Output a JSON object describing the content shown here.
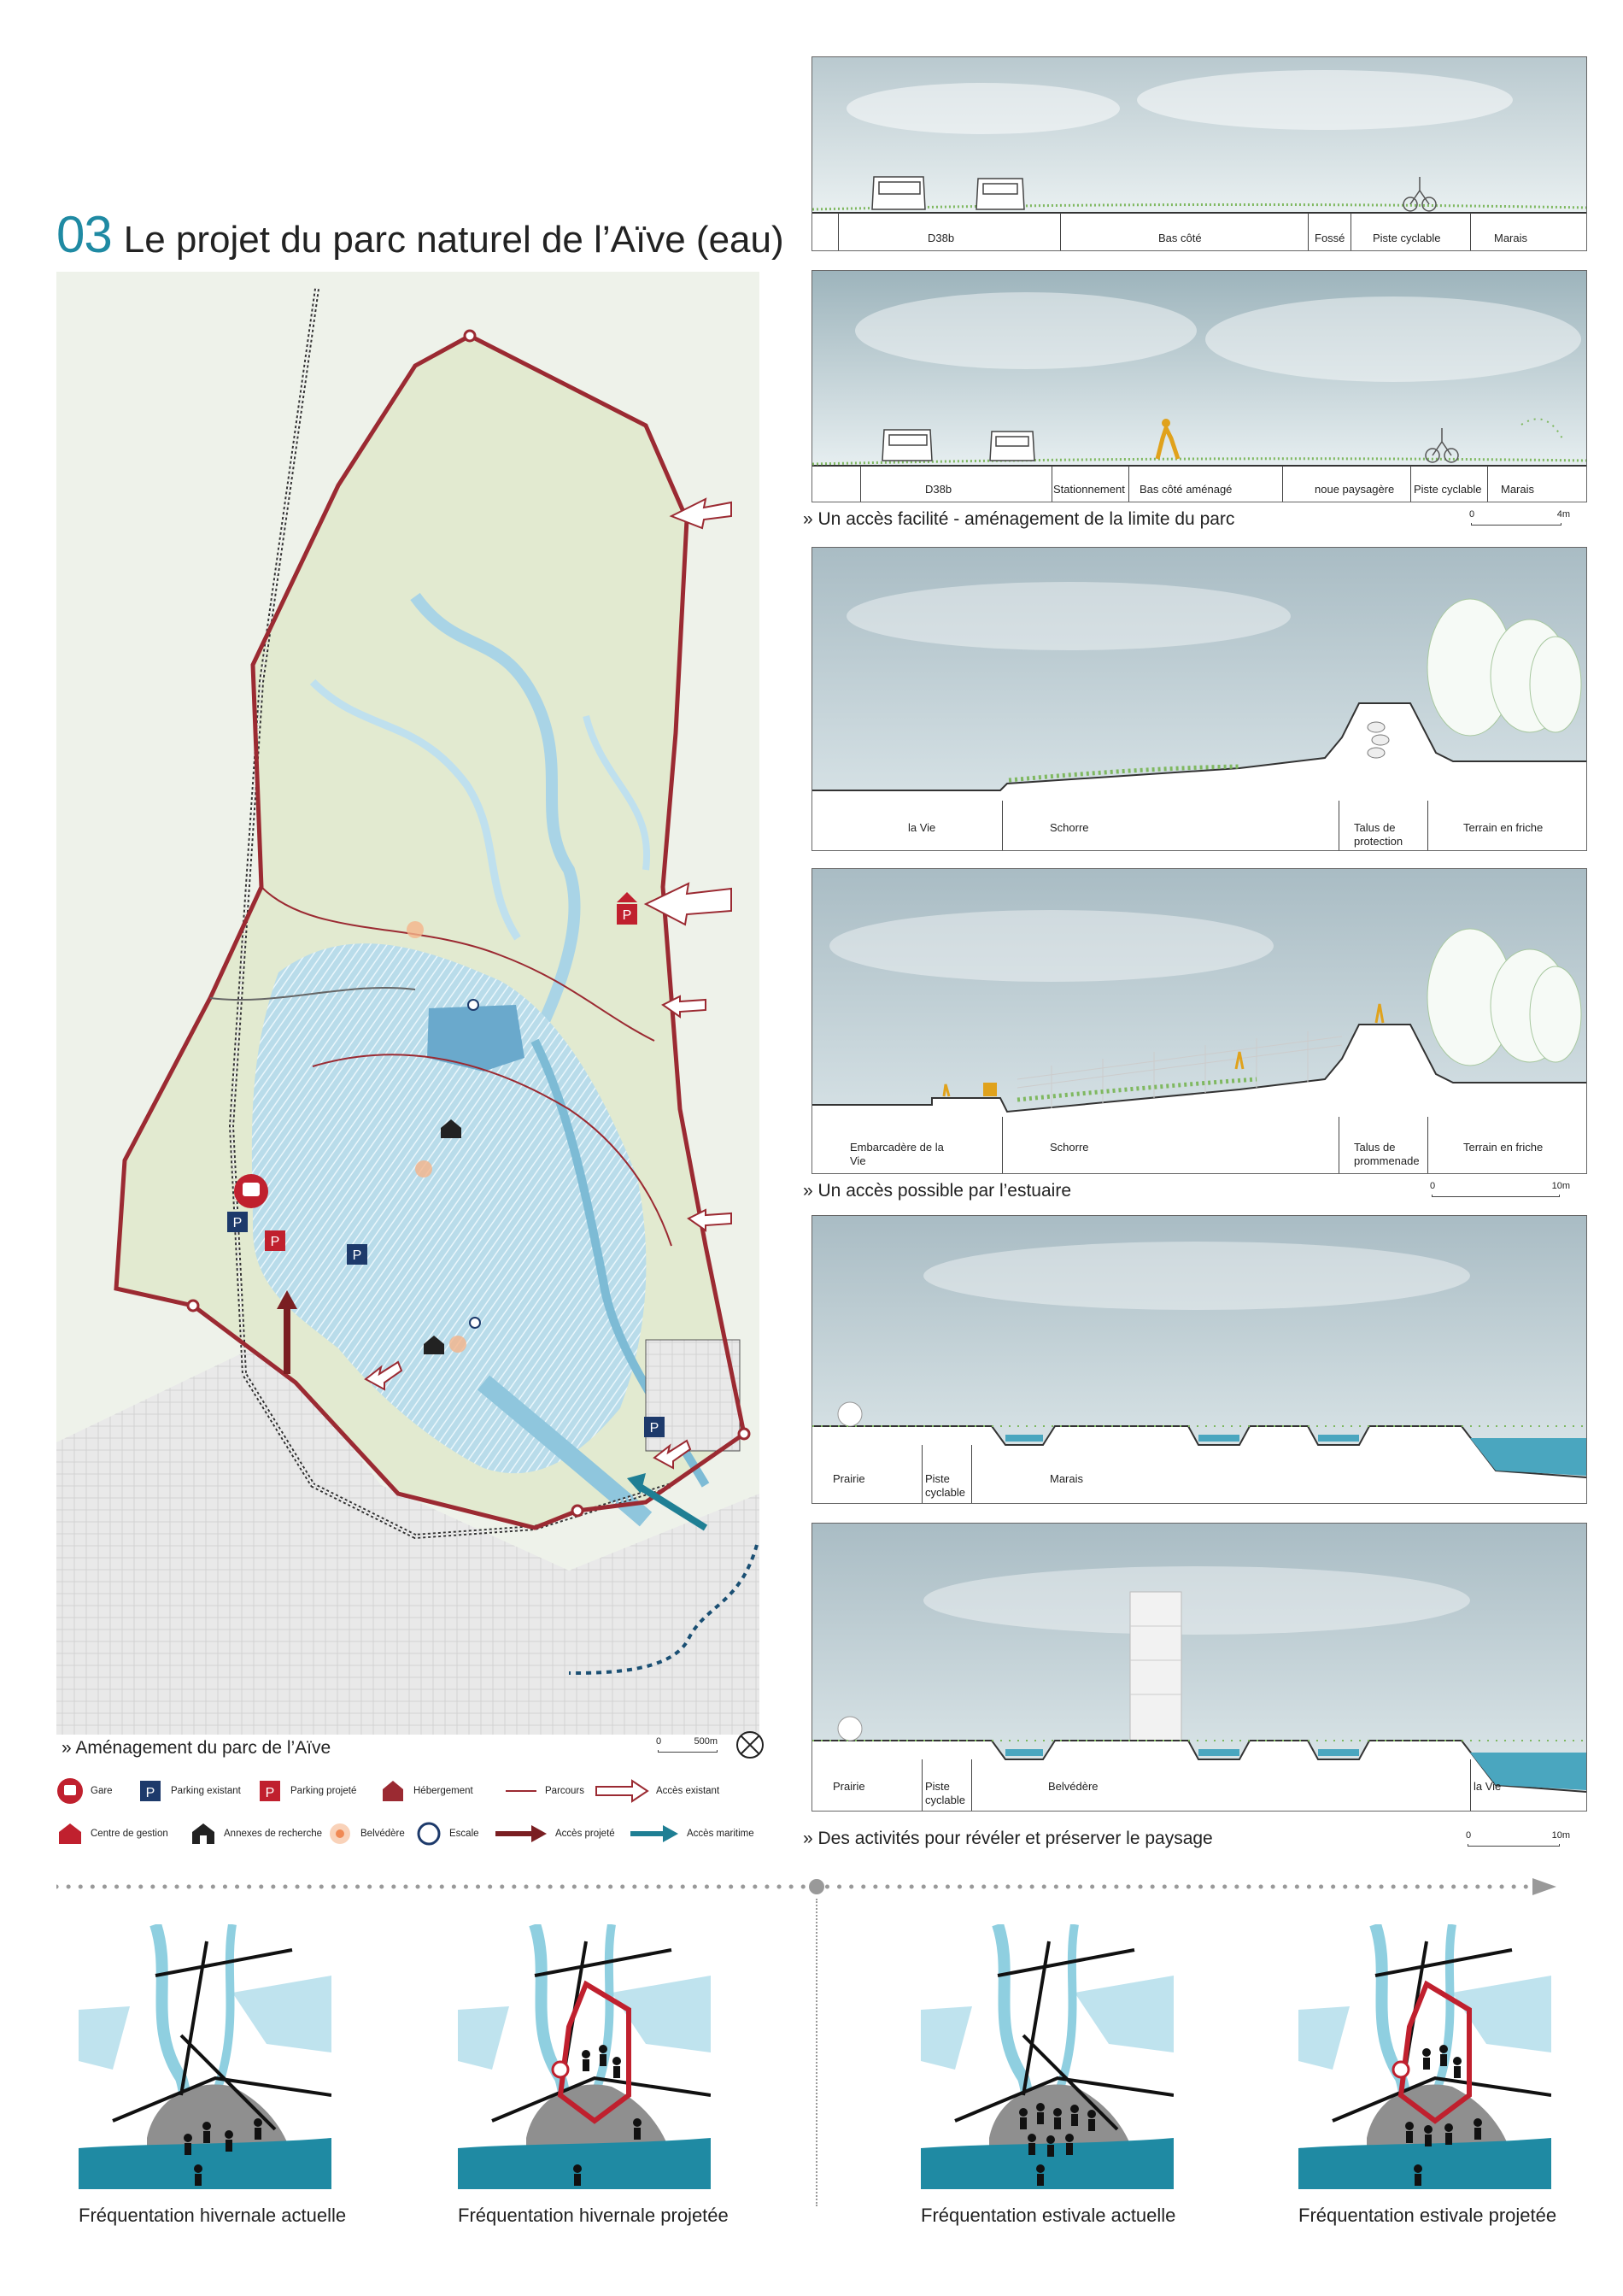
{
  "title": {
    "number": "03",
    "text": "Le projet du parc naturel de l’Aïve (eau)"
  },
  "map_caption": "» Aménagement du parc de l’Aïve",
  "map_scale": {
    "start": "0",
    "end": "500m"
  },
  "legend": [
    {
      "icon": "train-station-icon",
      "label": "Gare"
    },
    {
      "icon": "parking-existing-icon",
      "label": "Parking existant"
    },
    {
      "icon": "parking-planned-icon",
      "label": "Parking projeté"
    },
    {
      "icon": "lodging-icon",
      "label": "Hébergement"
    },
    {
      "icon": "trail-line-icon",
      "label": "Parcours"
    },
    {
      "icon": "existing-access-arrow-icon",
      "label": "Accès existant"
    },
    {
      "icon": "management-center-icon",
      "label": "Centre de gestion"
    },
    {
      "icon": "research-annex-icon",
      "label": "Annexes de recherche"
    },
    {
      "icon": "viewpoint-icon",
      "label": "Belvédère"
    },
    {
      "icon": "stopover-icon",
      "label": "Escale"
    },
    {
      "icon": "planned-access-arrow-icon",
      "label": "Accès projeté"
    },
    {
      "icon": "maritime-access-arrow-icon",
      "label": "Accès maritime"
    }
  ],
  "sections": [
    {
      "labels": [
        "D38b",
        "Bas côté",
        "Fossé",
        "Piste cyclable",
        "Marais"
      ]
    },
    {
      "labels": [
        "D38b",
        "Stationnement",
        "Bas côté aménagé",
        "noue paysagère",
        "Piste cyclable",
        "Marais"
      ]
    },
    {
      "labels": [
        "la Vie",
        "Schorre",
        "Talus de protection",
        "Terrain en friche"
      ]
    },
    {
      "labels": [
        "Embarcadère de la Vie",
        "Schorre",
        "Talus de prommenade",
        "Terrain en friche"
      ]
    },
    {
      "labels": [
        "Prairie",
        "Piste cyclable",
        "Marais"
      ]
    },
    {
      "labels": [
        "Prairie",
        "Piste cyclable",
        "Belvédère",
        "la Vie"
      ]
    }
  ],
  "captions": {
    "access_easy": "» Un accès facilité - aménagement de la limite du parc",
    "access_estuary": "» Un accès possible par l’estuaire",
    "activities": "» Des activités pour révéler et préserver le paysage"
  },
  "scales": {
    "s1": {
      "start": "0",
      "end": "4m"
    },
    "s2": {
      "start": "0",
      "end": "10m"
    },
    "s3": {
      "start": "0",
      "end": "10m"
    }
  },
  "frequentation": [
    {
      "label": "Fréquentation hivernale actuelle"
    },
    {
      "label": "Fréquentation hivernale projetée"
    },
    {
      "label": "Fréquentation estivale actuelle"
    },
    {
      "label": "Fréquentation estivale projetée"
    }
  ],
  "colors": {
    "accent": "#1f8aa3",
    "park_boundary": "#9b2a32",
    "water": "#bfe3ee",
    "sea": "#1f8aa3",
    "access_planned": "#7a1f22",
    "access_maritime": "#1f7f94"
  }
}
